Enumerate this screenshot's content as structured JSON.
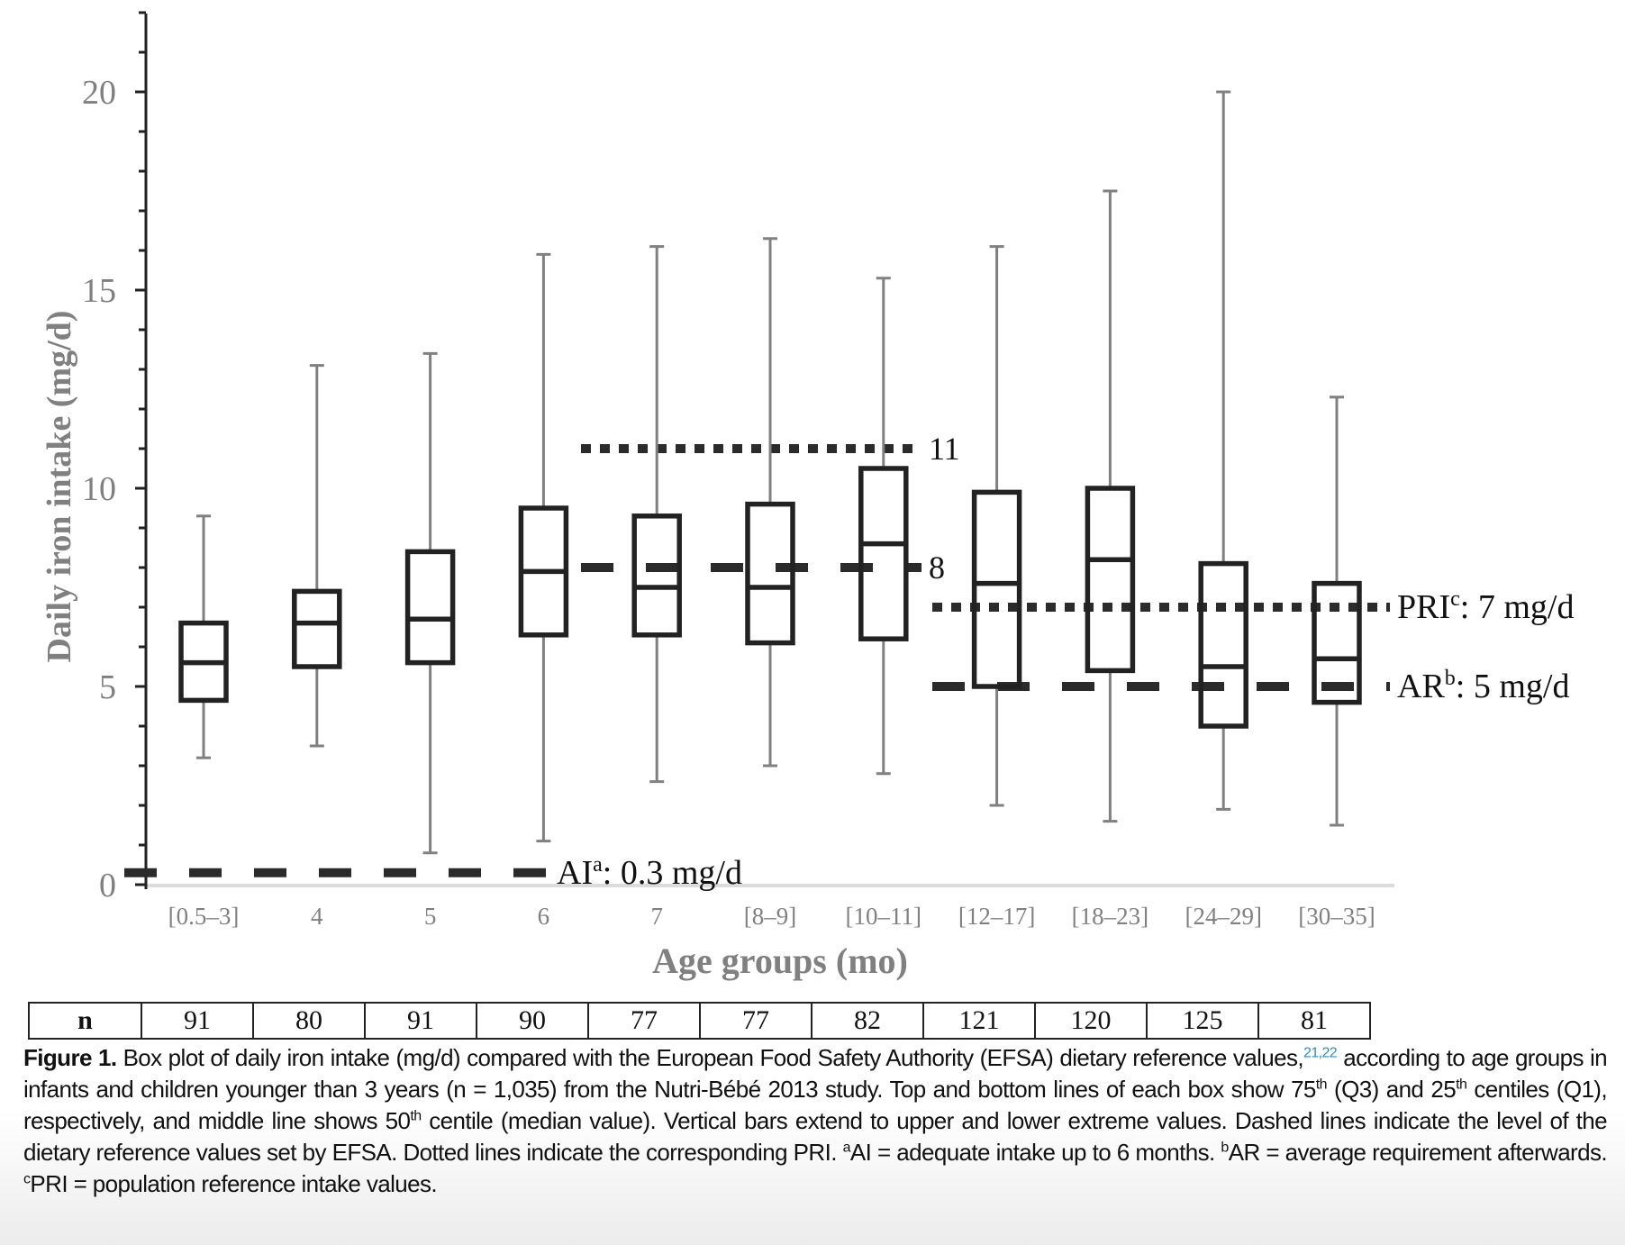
{
  "chart_data": {
    "type": "box",
    "xlabel": "Age groups (mo)",
    "ylabel": "Daily iron intake (mg/d)",
    "ylim": [
      0,
      22
    ],
    "yticks": [
      0,
      5,
      10,
      15,
      20
    ],
    "yminor_step": 1,
    "grid": false,
    "categories": [
      "[0.5–3]",
      "4",
      "5",
      "6",
      "7",
      "[8–9]",
      "[10–11]",
      "[12–17]",
      "[18–23]",
      "[24–29]",
      "[30–35]"
    ],
    "series": [
      {
        "name": "min",
        "values": [
          3.2,
          3.5,
          0.8,
          1.1,
          2.6,
          3.0,
          2.8,
          2.0,
          1.6,
          1.9,
          1.5
        ]
      },
      {
        "name": "Q1",
        "values": [
          4.65,
          5.5,
          5.6,
          6.3,
          6.3,
          6.1,
          6.2,
          5.0,
          5.4,
          4.0,
          4.6
        ]
      },
      {
        "name": "median",
        "values": [
          5.6,
          6.6,
          6.7,
          7.9,
          7.5,
          7.5,
          8.6,
          7.6,
          8.2,
          5.5,
          5.7
        ]
      },
      {
        "name": "Q3",
        "values": [
          6.6,
          7.4,
          8.4,
          9.5,
          9.3,
          9.6,
          10.5,
          9.9,
          10.0,
          8.1,
          7.6
        ]
      },
      {
        "name": "max",
        "values": [
          9.3,
          13.1,
          13.4,
          15.9,
          16.1,
          16.3,
          15.3,
          16.1,
          17.5,
          20.0,
          12.3
        ]
      }
    ],
    "reference_lines": [
      {
        "style": "dashed",
        "value": 0.3,
        "from_category": 0,
        "to_category": 3,
        "label": "AI",
        "sup": "a",
        "label_rest": ": 0.3 mg/d"
      },
      {
        "style": "dashed",
        "value": 8,
        "from_category": 4,
        "to_category": 6,
        "label": "8",
        "sup": "",
        "label_rest": ""
      },
      {
        "style": "dotted",
        "value": 11,
        "from_category": 4,
        "to_category": 6,
        "label": "11",
        "sup": "",
        "label_rest": ""
      },
      {
        "style": "dashed",
        "value": 5,
        "from_category": 7,
        "to_category": 10,
        "label": "AR",
        "sup": "b",
        "label_rest": ": 5 mg/d"
      },
      {
        "style": "dotted",
        "value": 7,
        "from_category": 7,
        "to_category": 10,
        "label": "PRI",
        "sup": "c",
        "label_rest": ": 7 mg/d"
      }
    ],
    "colors": {
      "box": "#222222",
      "whisker": "#808080",
      "axis": "#222222",
      "tick_label": "#808080",
      "ref_line": "#2b2b2b"
    }
  },
  "n_table": {
    "header": "n",
    "values": [
      "91",
      "80",
      "91",
      "90",
      "77",
      "77",
      "82",
      "121",
      "120",
      "125",
      "81"
    ]
  },
  "caption": {
    "label": "Figure 1.",
    "text_1": " Box plot of daily iron intake (mg/d) compared with the European Food Safety Authority (EFSA) dietary reference values,",
    "refs": "21,22",
    "text_2": " according to age groups in infants and children younger than 3 years (n = 1,035) from the Nutri-Bébé 2013 study. Top and bottom lines of each box show 75",
    "sup_th": "th",
    "text_3": " (Q3) and 25",
    "text_4": " centiles (Q1), respectively, and middle line shows 50",
    "text_5": " centile (median value). Vertical bars extend to upper and lower extreme values. Dashed lines indicate the level of the dietary reference values set by EFSA. Dotted lines indicate the corresponding PRI. ",
    "sup_a": "a",
    "text_6": "AI = adequate intake up to 6 months. ",
    "sup_b": "b",
    "text_7": "AR = average requirement afterwards. ",
    "sup_c": "c",
    "text_8": "PRI = population reference intake values."
  }
}
